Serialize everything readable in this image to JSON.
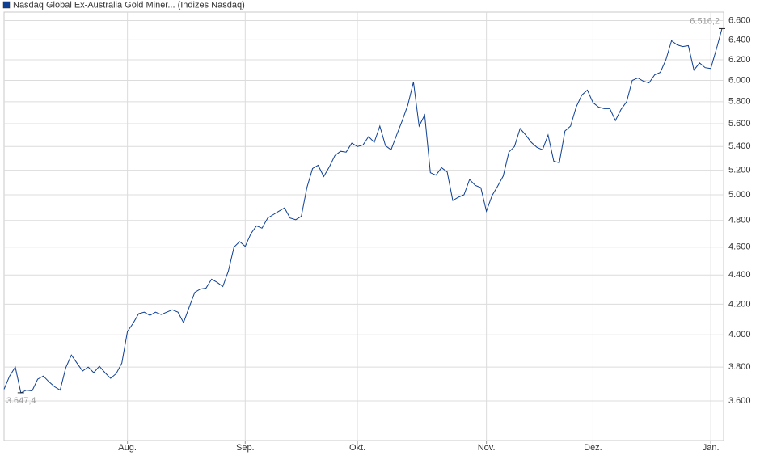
{
  "chart_data": {
    "type": "line",
    "log_scale": true,
    "grid": true,
    "legend": "top-left",
    "categories": [
      null,
      null,
      null,
      null,
      null,
      null,
      null,
      null,
      null,
      null,
      null,
      null,
      null,
      null,
      null,
      null,
      null,
      null,
      null,
      null,
      null,
      null,
      "Aug.",
      null,
      null,
      null,
      null,
      null,
      null,
      null,
      null,
      null,
      null,
      null,
      null,
      null,
      null,
      null,
      null,
      null,
      null,
      null,
      null,
      "Sep.",
      null,
      null,
      null,
      null,
      null,
      null,
      null,
      null,
      null,
      null,
      null,
      null,
      null,
      null,
      null,
      null,
      null,
      null,
      null,
      "Okt.",
      null,
      null,
      null,
      null,
      null,
      null,
      null,
      null,
      null,
      null,
      null,
      null,
      null,
      null,
      null,
      null,
      null,
      null,
      null,
      null,
      null,
      null,
      "Nov.",
      null,
      null,
      null,
      null,
      null,
      null,
      null,
      null,
      null,
      null,
      null,
      null,
      null,
      null,
      null,
      null,
      null,
      null,
      "Dez.",
      null,
      null,
      null,
      null,
      null,
      null,
      null,
      null,
      null,
      null,
      null,
      null,
      null,
      null,
      null,
      null,
      null,
      null,
      null,
      null,
      "Jan.",
      null,
      null
    ],
    "series": [
      {
        "name": "Nasdaq Global Ex-Australia Gold Miner... (Indizes Nasdaq)",
        "color": "#0d3f94",
        "values": [
          3668,
          3746,
          3800,
          3647.4,
          3663,
          3658,
          3727,
          3746,
          3712,
          3683,
          3663,
          3795,
          3873,
          3824,
          3776,
          3800,
          3766,
          3805,
          3766,
          3732,
          3761,
          3824,
          4021,
          4074,
          4137,
          4147,
          4126,
          4147,
          4132,
          4147,
          4163,
          4147,
          4079,
          4179,
          4280,
          4303,
          4309,
          4371,
          4349,
          4320,
          4429,
          4600,
          4641,
          4606,
          4700,
          4759,
          4741,
          4819,
          4845,
          4871,
          4897,
          4819,
          4806,
          4832,
          5058,
          5214,
          5241,
          5148,
          5228,
          5324,
          5359,
          5352,
          5429,
          5400,
          5414,
          5486,
          5436,
          5579,
          5407,
          5372,
          5500,
          5629,
          5771,
          5985,
          5579,
          5679,
          5179,
          5159,
          5221,
          5186,
          4955,
          4981,
          5000,
          5124,
          5076,
          5058,
          4871,
          4994,
          5069,
          5152,
          5352,
          5400,
          5557,
          5500,
          5436,
          5393,
          5372,
          5500,
          5276,
          5262,
          5536,
          5579,
          5750,
          5862,
          5908,
          5792,
          5750,
          5736,
          5736,
          5629,
          5729,
          5800,
          6000,
          6023,
          5992,
          5977,
          6054,
          6077,
          6200,
          6392,
          6350,
          6333,
          6342,
          6100,
          6169,
          6123,
          6115,
          6308,
          6516.2
        ]
      }
    ],
    "ylim": [
      3380,
      6690
    ],
    "yticks": [
      {
        "value": 3600,
        "label": "3.600"
      },
      {
        "value": 3800,
        "label": "3.800"
      },
      {
        "value": 4000,
        "label": "4.000"
      },
      {
        "value": 4200,
        "label": "4.200"
      },
      {
        "value": 4400,
        "label": "4.400"
      },
      {
        "value": 4600,
        "label": "4.600"
      },
      {
        "value": 4800,
        "label": "4.800"
      },
      {
        "value": 5000,
        "label": "5.000"
      },
      {
        "value": 5200,
        "label": "5.200"
      },
      {
        "value": 5400,
        "label": "5.400"
      },
      {
        "value": 5600,
        "label": "5.600"
      },
      {
        "value": 5800,
        "label": "5.800"
      },
      {
        "value": 6000,
        "label": "6.000"
      },
      {
        "value": 6200,
        "label": "6.200"
      },
      {
        "value": 6400,
        "label": "6.400"
      },
      {
        "value": 6600,
        "label": "6.600"
      }
    ],
    "annotations": [
      {
        "text": "6.516,2",
        "value": 6516.2
      },
      {
        "text": "3.647,4",
        "value": 3647.4
      }
    ]
  }
}
